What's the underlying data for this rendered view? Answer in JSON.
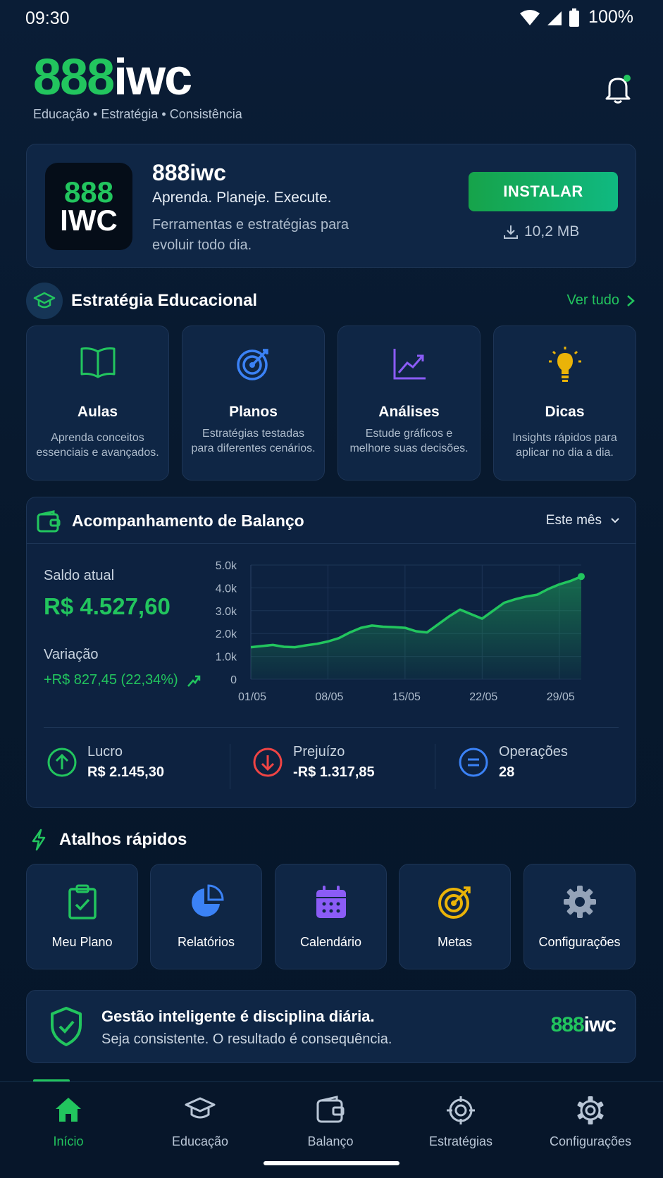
{
  "status": {
    "time": "09:30",
    "battery": "100%"
  },
  "brand": {
    "logo_green": "888",
    "logo_white": "iwc",
    "tagline": "Educação • Estratégia • Consistência"
  },
  "install": {
    "icon_top": "888",
    "icon_bottom": "IWC",
    "name": "888iwc",
    "subtitle": "Aprenda. Planeje. Execute.",
    "description": "Ferramentas e estratégias para evoluir todo dia.",
    "button": "INSTALAR",
    "size": "10,2 MB"
  },
  "education": {
    "title": "Estratégia Educacional",
    "see_all": "Ver tudo",
    "cards": [
      {
        "title": "Aulas",
        "desc": "Aprenda conceitos essenciais e avançados.",
        "icon": "book-icon",
        "color": "#22c55e"
      },
      {
        "title": "Planos",
        "desc": "Estratégias testadas para diferentes cenários.",
        "icon": "target-icon",
        "color": "#3b82f6"
      },
      {
        "title": "Análises",
        "desc": "Estude gráficos e melhore suas decisões.",
        "icon": "chart-up-icon",
        "color": "#8b5cf6"
      },
      {
        "title": "Dicas",
        "desc": "Insights rápidos para aplicar no dia a dia.",
        "icon": "lightbulb-icon",
        "color": "#eab308"
      }
    ]
  },
  "balance": {
    "title": "Acompanhamento de Balanço",
    "period": "Este mês",
    "saldo_label": "Saldo atual",
    "saldo_value": "R$ 4.527,60",
    "variacao_label": "Variação",
    "variacao_value": "+R$ 827,45 (22,34%)",
    "stats": [
      {
        "label": "Lucro",
        "value": "R$ 2.145,30",
        "color": "#22c55e"
      },
      {
        "label": "Prejuízo",
        "value": "-R$ 1.317,85",
        "color": "#ef4444"
      },
      {
        "label": "Operações",
        "value": "28",
        "color": "#3b82f6"
      }
    ]
  },
  "chart_data": {
    "type": "area",
    "title": "",
    "xlabel": "",
    "ylabel": "",
    "y_ticks": [
      "5.0k",
      "4.0k",
      "3.0k",
      "2.0k",
      "1.0k",
      "0"
    ],
    "x_ticks": [
      "01/05",
      "08/05",
      "15/05",
      "22/05",
      "29/05"
    ],
    "ylim": [
      0,
      5000
    ],
    "x": [
      1,
      2,
      3,
      4,
      5,
      6,
      7,
      8,
      9,
      10,
      11,
      12,
      13,
      14,
      15,
      16,
      17,
      18,
      19,
      20,
      21,
      22,
      23,
      24,
      25,
      26,
      27,
      28,
      29,
      30,
      31
    ],
    "values": [
      1400,
      1450,
      1500,
      1420,
      1400,
      1480,
      1550,
      1650,
      1800,
      2050,
      2250,
      2350,
      2300,
      2280,
      2250,
      2100,
      2050,
      2400,
      2750,
      3050,
      2850,
      2650,
      3000,
      3350,
      3500,
      3620,
      3700,
      3950,
      4150,
      4300,
      4500
    ],
    "grid": true,
    "color": "#22c55e"
  },
  "shortcuts": {
    "title": "Atalhos rápidos",
    "items": [
      {
        "label": "Meu Plano",
        "icon": "clipboard-check-icon",
        "color": "#22c55e"
      },
      {
        "label": "Relatórios",
        "icon": "pie-chart-icon",
        "color": "#3b82f6"
      },
      {
        "label": "Calendário",
        "icon": "calendar-icon",
        "color": "#8b5cf6"
      },
      {
        "label": "Metas",
        "icon": "goal-target-icon",
        "color": "#eab308"
      },
      {
        "label": "Configurações",
        "icon": "gear-icon",
        "color": "#94a3b8"
      }
    ]
  },
  "motto": {
    "title": "Gestão inteligente é disciplina diária.",
    "subtitle": "Seja consistente. O resultado é consequência.",
    "logo_green": "888",
    "logo_white": "iwc"
  },
  "nav": {
    "items": [
      {
        "label": "Início",
        "icon": "home-icon",
        "active": true
      },
      {
        "label": "Educação",
        "icon": "graduation-cap-icon",
        "active": false
      },
      {
        "label": "Balanço",
        "icon": "wallet-icon",
        "active": false
      },
      {
        "label": "Estratégias",
        "icon": "crosshair-icon",
        "active": false
      },
      {
        "label": "Configurações",
        "icon": "gear-icon",
        "active": false
      }
    ]
  }
}
